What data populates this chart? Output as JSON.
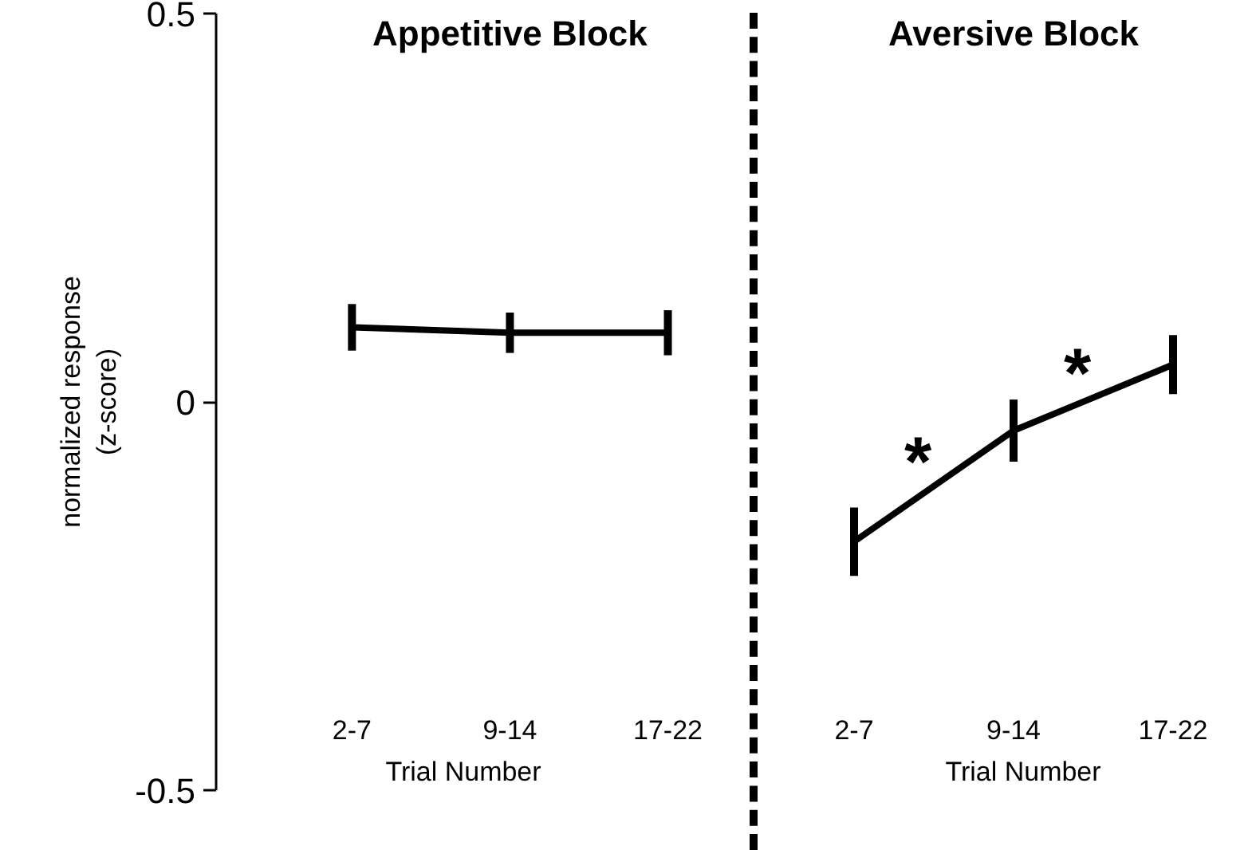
{
  "chart_data": [
    {
      "type": "line",
      "title": "Appetitive Block",
      "xlabel": "Trial Number",
      "ylabel": "normalized response\n(z-score)",
      "categories": [
        "2-7",
        "9-14",
        "17-22"
      ],
      "series": [
        {
          "color": "#000000",
          "values": [
            0.096,
            0.089,
            0.089
          ],
          "errors": [
            0.03,
            0.026,
            0.029
          ]
        }
      ],
      "ylim": [
        -0.5,
        0.5
      ],
      "yticks": [
        -0.5,
        0,
        0.5
      ],
      "grid": false,
      "marker": "none",
      "line_style": "solid"
    },
    {
      "type": "line",
      "title": "Aversive Block",
      "xlabel": "Trial Number",
      "categories": [
        "2-7",
        "9-14",
        "17-22"
      ],
      "series": [
        {
          "color": "#000000",
          "values": [
            -0.18,
            -0.037,
            0.048
          ],
          "errors": [
            0.044,
            0.04,
            0.038
          ]
        }
      ],
      "annotations": [
        "*",
        "*"
      ],
      "ylim": [
        -0.5,
        0.5
      ],
      "yticks": [
        -0.5,
        0,
        0.5
      ],
      "tick_labels": "x",
      "grid": false,
      "marker": "none",
      "line_style": "solid"
    }
  ]
}
